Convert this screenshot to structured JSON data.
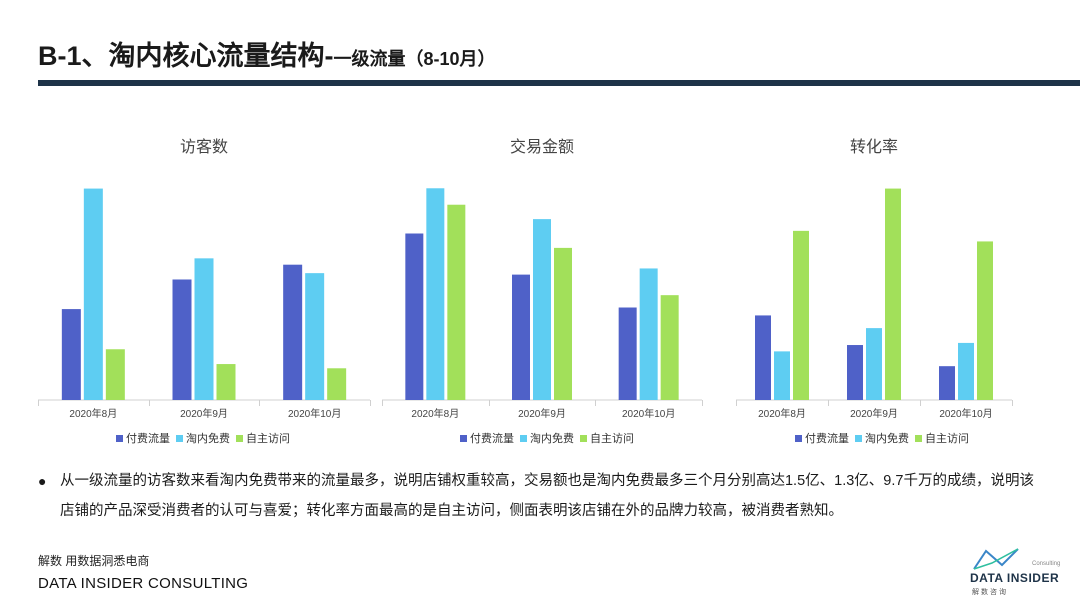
{
  "header": {
    "title_main": "B-1、淘内核心流量结构-",
    "title_sub": "一级流量（8-10月）"
  },
  "colors": {
    "paid": "#4f61c8",
    "free": "#5ecdf2",
    "self": "#a2e05a",
    "rule": "#1e3348"
  },
  "chart_data": [
    {
      "type": "bar",
      "title": "访客数",
      "categories": [
        "2020年8月",
        "2020年9月",
        "2020年10月"
      ],
      "series": [
        {
          "name": "付费流量",
          "values": [
            43,
            57,
            64
          ]
        },
        {
          "name": "淘内免费",
          "values": [
            100,
            67,
            60
          ]
        },
        {
          "name": "自主访问",
          "values": [
            24,
            17,
            15
          ]
        }
      ],
      "ylim": [
        0,
        105
      ]
    },
    {
      "type": "bar",
      "title": "交易金额",
      "categories": [
        "2020年8月",
        "2020年9月",
        "2020年10月"
      ],
      "series": [
        {
          "name": "付费流量",
          "values": [
            81,
            61,
            45
          ]
        },
        {
          "name": "淘内免费",
          "values": [
            103,
            88,
            64
          ]
        },
        {
          "name": "自主访问",
          "values": [
            95,
            74,
            51
          ]
        }
      ],
      "ylim": [
        0,
        108
      ]
    },
    {
      "type": "bar",
      "title": "转化率",
      "categories": [
        "2020年8月",
        "2020年9月",
        "2020年10月"
      ],
      "series": [
        {
          "name": "付费流量",
          "values": [
            40,
            26,
            16
          ]
        },
        {
          "name": "淘内免费",
          "values": [
            23,
            34,
            27
          ]
        },
        {
          "name": "自主访问",
          "values": [
            80,
            100,
            75
          ]
        }
      ],
      "ylim": [
        0,
        105
      ]
    }
  ],
  "note": {
    "bullet": "●",
    "text": "从一级流量的访客数来看淘内免费带来的流量最多，说明店铺权重较高，交易额也是淘内免费最多三个月分别高达1.5亿、1.3亿、9.7千万的成绩，说明该店铺的产品深受消费者的认可与喜爱；转化率方面最高的是自主访问，侧面表明该店铺在外的品牌力较高，被消费者熟知。"
  },
  "footer": {
    "cn": "解数 用数据洞悉电商",
    "en": "DATA INSIDER CONSULTING"
  },
  "logo": {
    "small": "Consulting",
    "main": "DATA INSIDER",
    "cn": "解数咨询"
  }
}
